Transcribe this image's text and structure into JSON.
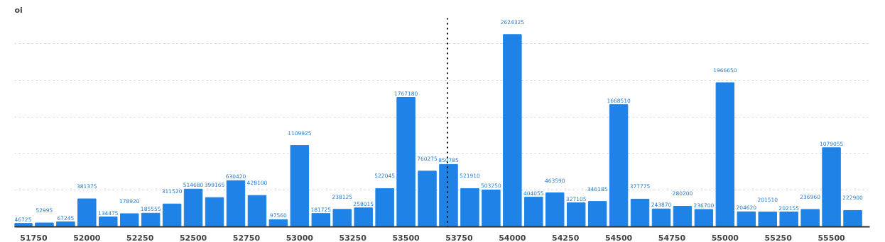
{
  "chart_data": {
    "type": "bar",
    "title": "oi",
    "x": [
      51700,
      51800,
      51900,
      52000,
      52100,
      52200,
      52300,
      52400,
      52500,
      52600,
      52700,
      52800,
      52900,
      53000,
      53100,
      53200,
      53300,
      53400,
      53500,
      53600,
      53700,
      53800,
      53900,
      54000,
      54100,
      54200,
      54300,
      54400,
      54500,
      54600,
      54700,
      54800,
      54900,
      55000,
      55100,
      55200,
      55300,
      55400,
      55500,
      55600
    ],
    "series": [
      {
        "color": "#1e82e6",
        "values": [
          46725,
          52995,
          67245,
          381375,
          134475,
          178920,
          185555,
          311520,
          514680,
          399165,
          630420,
          428100,
          97560,
          1109925,
          181725,
          238125,
          258015,
          522045,
          1767180,
          760275,
          850785,
          521910,
          503250,
          2624325,
          404055,
          463590,
          327105,
          346185,
          1668510,
          377775,
          243870,
          280200,
          236700,
          1966650,
          204620,
          201510,
          202155,
          236960,
          1079055,
          222900
        ]
      }
    ],
    "data_labels": true,
    "xlim": [
      51660,
      55680
    ],
    "xticks": [
      51750,
      52000,
      52250,
      52500,
      52750,
      53000,
      53250,
      53500,
      53750,
      54000,
      54250,
      54500,
      54750,
      55000,
      55250,
      55500
    ],
    "ylim": [
      0,
      2850000
    ],
    "yticks": [
      0,
      500000,
      1000000,
      1500000,
      2000000,
      2500000
    ],
    "tick_labels": "x",
    "grid": "y",
    "ref_lines": [
      {
        "axis": "x",
        "value": 53695,
        "line_style": "dotted",
        "color": "#000000"
      }
    ]
  }
}
